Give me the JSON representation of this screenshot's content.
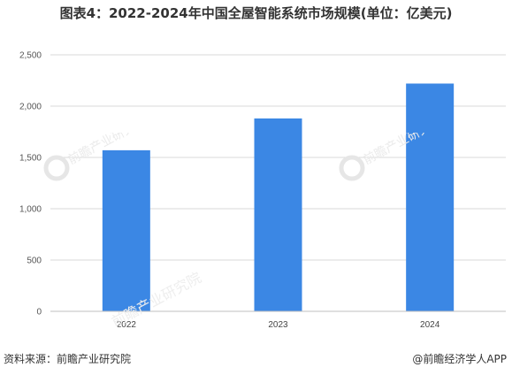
{
  "title": "图表4：2022-2024年中国全屋智能系统市场规模(单位：亿美元)",
  "footer": {
    "source": "资料来源：前瞻产业研究院",
    "credit": "@前瞻经济学人APP"
  },
  "watermark": {
    "text": "前瞻产业研究院"
  },
  "colors": {
    "bar": "#3b87e4",
    "grid": "#d9d9d9",
    "axis": "#bfbfbf"
  },
  "chart_data": {
    "type": "bar",
    "categories": [
      "2022",
      "2023",
      "2024"
    ],
    "values": [
      1570,
      1880,
      2220
    ],
    "title": "图表4：2022-2024年中国全屋智能系统市场规模(单位：亿美元)",
    "xlabel": "",
    "ylabel": "",
    "ylim": [
      0,
      2500
    ],
    "yticks": [
      0,
      500,
      1000,
      1500,
      2000,
      2500
    ],
    "ytick_labels": [
      "0",
      "500",
      "1,000",
      "1,500",
      "2,000",
      "2,500"
    ],
    "grid": true,
    "legend": "none"
  }
}
